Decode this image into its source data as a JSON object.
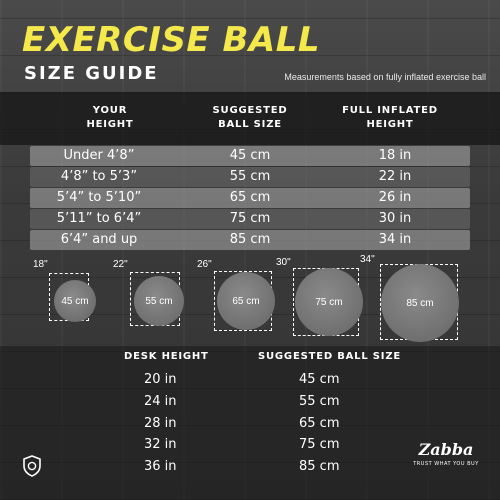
{
  "title": "EXERCISE BALL",
  "subtitle": "SIZE GUIDE",
  "note": "Measurements based on fully inflated exercise ball",
  "table": {
    "headers": [
      "YOUR\nHEIGHT",
      "SUGGESTED\nBALL SIZE",
      "FULL INFLATED\nHEIGHT"
    ],
    "rows": [
      [
        "Under 4’8”",
        "45 cm",
        "18 in"
      ],
      [
        "4’8” to 5’3”",
        "55 cm",
        "22 in"
      ],
      [
        "5’4” to 5’10”",
        "65 cm",
        "26 in"
      ],
      [
        "5’11” to 6’4”",
        "75 cm",
        "30 in"
      ],
      [
        "6’4” and up",
        "85 cm",
        "34 in"
      ]
    ]
  },
  "balls": [
    {
      "size": "45 cm",
      "height": "18\""
    },
    {
      "size": "55 cm",
      "height": "22\""
    },
    {
      "size": "65 cm",
      "height": "26\""
    },
    {
      "size": "75 cm",
      "height": "30\""
    },
    {
      "size": "85 cm",
      "height": "34\""
    }
  ],
  "desk": {
    "headers": [
      "DESK HEIGHT",
      "SUGGESTED BALL SIZE"
    ],
    "rows": [
      [
        "20 in",
        "45 cm"
      ],
      [
        "24 in",
        "55 cm"
      ],
      [
        "28 in",
        "65 cm"
      ],
      [
        "32 in",
        "75 cm"
      ],
      [
        "36 in",
        "85 cm"
      ]
    ]
  },
  "brand": {
    "name": "Zabba",
    "tagline": "TRUST WHAT YOU BUY",
    "icon": "shield-icon"
  },
  "colors": {
    "title": "#f5e84a",
    "text": "#ffffff"
  }
}
